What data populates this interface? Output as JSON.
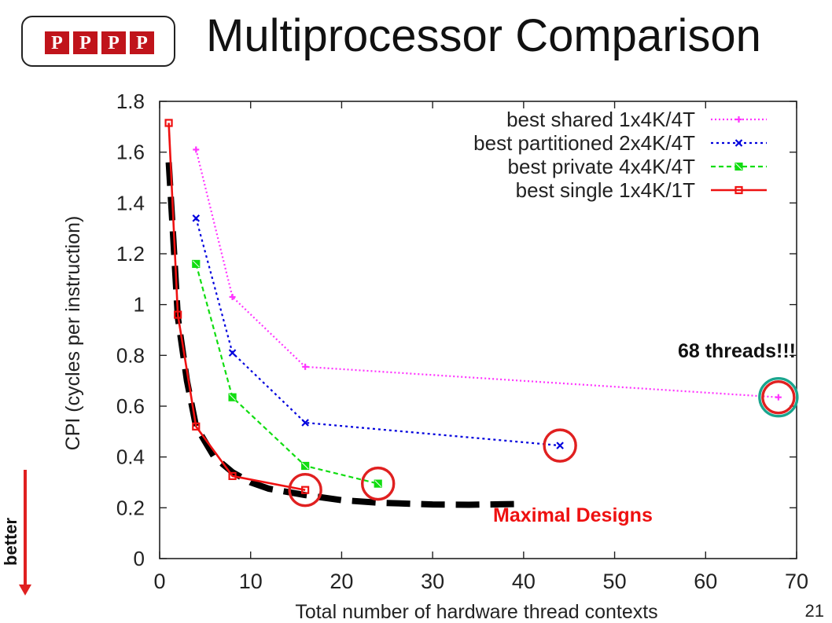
{
  "slide": {
    "title": "Multiprocessor Comparison",
    "logo_letters": [
      "P",
      "P",
      "P",
      "P"
    ],
    "page_number": "21",
    "better_label": "better",
    "annotation_threads": "68 threads!!!",
    "annotation_maximal": "Maximal Designs"
  },
  "colors": {
    "shared": "#ff33ff",
    "partitioned": "#0000dd",
    "private": "#11dd11",
    "single": "#ee1111",
    "highlight": "#e02020",
    "teal": "#1aa58e",
    "logo": "#c0141b"
  },
  "chart_data": {
    "type": "line",
    "xlabel": "Total number of hardware thread contexts",
    "ylabel": "CPI (cycles per instruction)",
    "xlim": [
      0,
      70
    ],
    "ylim": [
      0,
      1.8
    ],
    "xticks": [
      "0",
      "10",
      "20",
      "30",
      "40",
      "50",
      "60",
      "70"
    ],
    "yticks": [
      "0",
      "0.2",
      "0.4",
      "0.6",
      "0.8",
      "1",
      "1.2",
      "1.4",
      "1.6",
      "1.8"
    ],
    "grid": false,
    "legend_position": "top-right",
    "series": [
      {
        "name": "best shared 1x4K/4T",
        "color": "#ff33ff",
        "dash": "2,3",
        "marker": "plus",
        "x": [
          4,
          8,
          16,
          68
        ],
        "y": [
          1.61,
          1.03,
          0.755,
          0.635
        ]
      },
      {
        "name": "best partitioned 2x4K/4T",
        "color": "#0000dd",
        "dash": "3,4",
        "marker": "x",
        "x": [
          4,
          8,
          16,
          44
        ],
        "y": [
          1.34,
          0.81,
          0.535,
          0.445
        ]
      },
      {
        "name": "best private 4x4K/4T",
        "color": "#11dd11",
        "dash": "6,4",
        "marker": "xsquare",
        "x": [
          4,
          8,
          16,
          24
        ],
        "y": [
          1.16,
          0.635,
          0.365,
          0.295
        ]
      },
      {
        "name": "best single 1x4K/1T",
        "color": "#ee1111",
        "dash": "",
        "marker": "square",
        "x": [
          1,
          2,
          4,
          8,
          16
        ],
        "y": [
          1.715,
          0.96,
          0.52,
          0.325,
          0.27
        ]
      }
    ],
    "highlighted_points": [
      {
        "x": 68,
        "y": 0.635,
        "color": "#1aa58e"
      },
      {
        "x": 68,
        "y": 0.635,
        "color": "#e02020"
      },
      {
        "x": 44,
        "y": 0.445,
        "color": "#e02020"
      },
      {
        "x": 24,
        "y": 0.295,
        "color": "#e02020"
      },
      {
        "x": 16,
        "y": 0.27,
        "color": "#e02020"
      }
    ],
    "pareto_frontier": {
      "x": [
        1,
        1.5,
        2,
        3,
        4,
        6,
        8,
        10,
        12,
        16,
        20,
        24,
        30,
        34,
        40
      ],
      "y": [
        1.56,
        1.26,
        0.95,
        0.7,
        0.52,
        0.4,
        0.34,
        0.3,
        0.275,
        0.25,
        0.23,
        0.22,
        0.213,
        0.212,
        0.215
      ]
    }
  }
}
